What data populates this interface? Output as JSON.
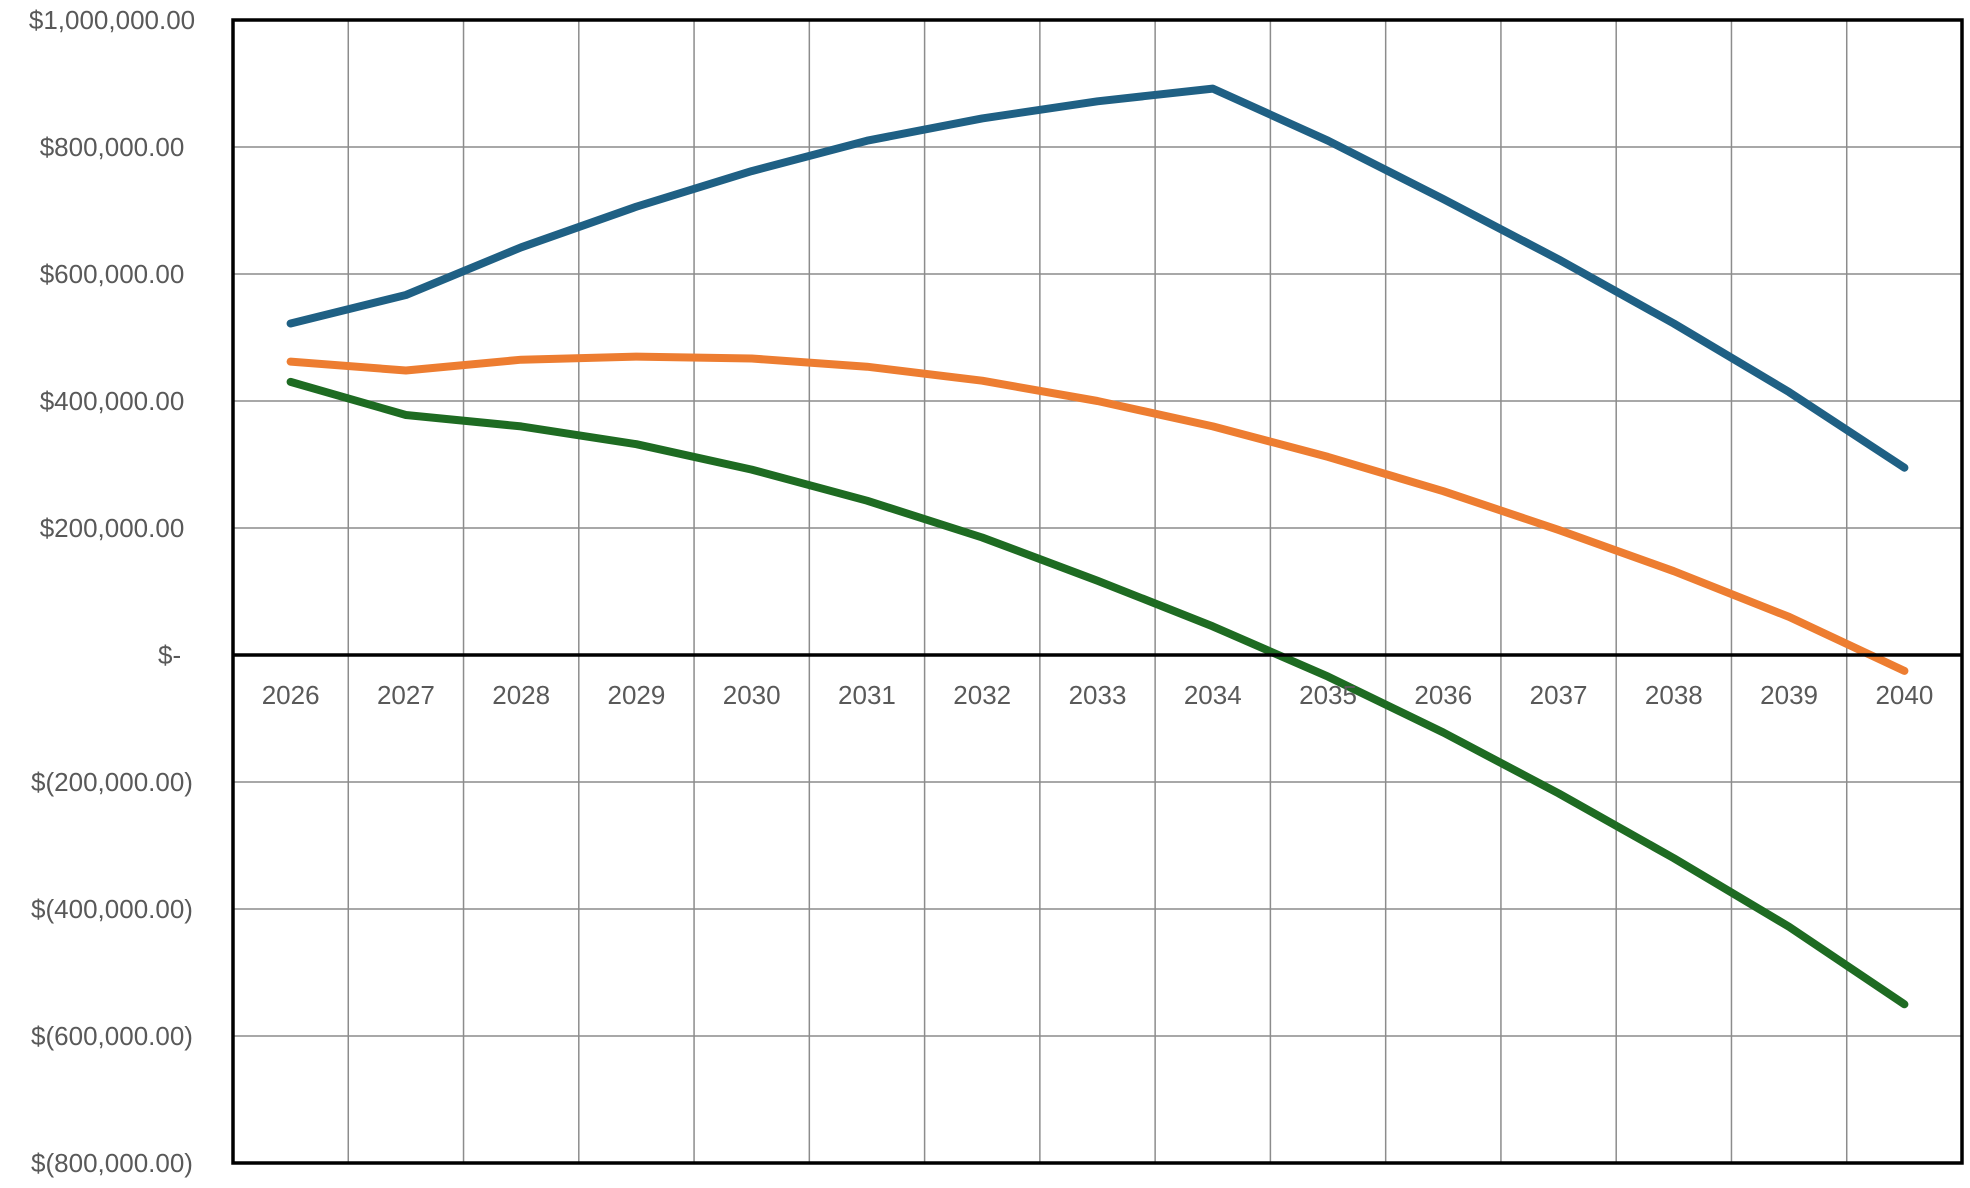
{
  "chart_data": {
    "type": "line",
    "title": "",
    "xlabel": "",
    "ylabel": "",
    "x": [
      "2026",
      "2027",
      "2028",
      "2029",
      "2030",
      "2031",
      "2032",
      "2033",
      "2034",
      "2035",
      "2036",
      "2037",
      "2038",
      "2039",
      "2040"
    ],
    "ylim": [
      -800000,
      1000000
    ],
    "y_ticks": [
      1000000,
      800000,
      600000,
      400000,
      200000,
      0,
      -200000,
      -400000,
      -600000,
      -800000
    ],
    "y_tick_labels": [
      "$1,000,000.00",
      "$800,000.00",
      "$600,000.00",
      "$400,000.00",
      "$200,000.00",
      "$-",
      "$(200,000.00)",
      "$(400,000.00)",
      "$(600,000.00)",
      "$(800,000.00)"
    ],
    "grid": true,
    "legend": "none",
    "series": [
      {
        "color": "#1f6084",
        "values": [
          522000,
          567000,
          642000,
          706000,
          762000,
          810000,
          845000,
          872000,
          892000,
          810000,
          718000,
          623000,
          522000,
          414000,
          295000
        ]
      },
      {
        "color": "#ed7d31",
        "values": [
          462000,
          448000,
          465000,
          470000,
          467000,
          454000,
          432000,
          400000,
          360000,
          312000,
          258000,
          197000,
          132000,
          60000,
          -25000
        ]
      },
      {
        "color": "#1e6b22",
        "values": [
          430000,
          378000,
          360000,
          332000,
          292000,
          243000,
          185000,
          117000,
          45000,
          -34000,
          -122000,
          -218000,
          -320000,
          -428000,
          -550000
        ]
      }
    ]
  }
}
